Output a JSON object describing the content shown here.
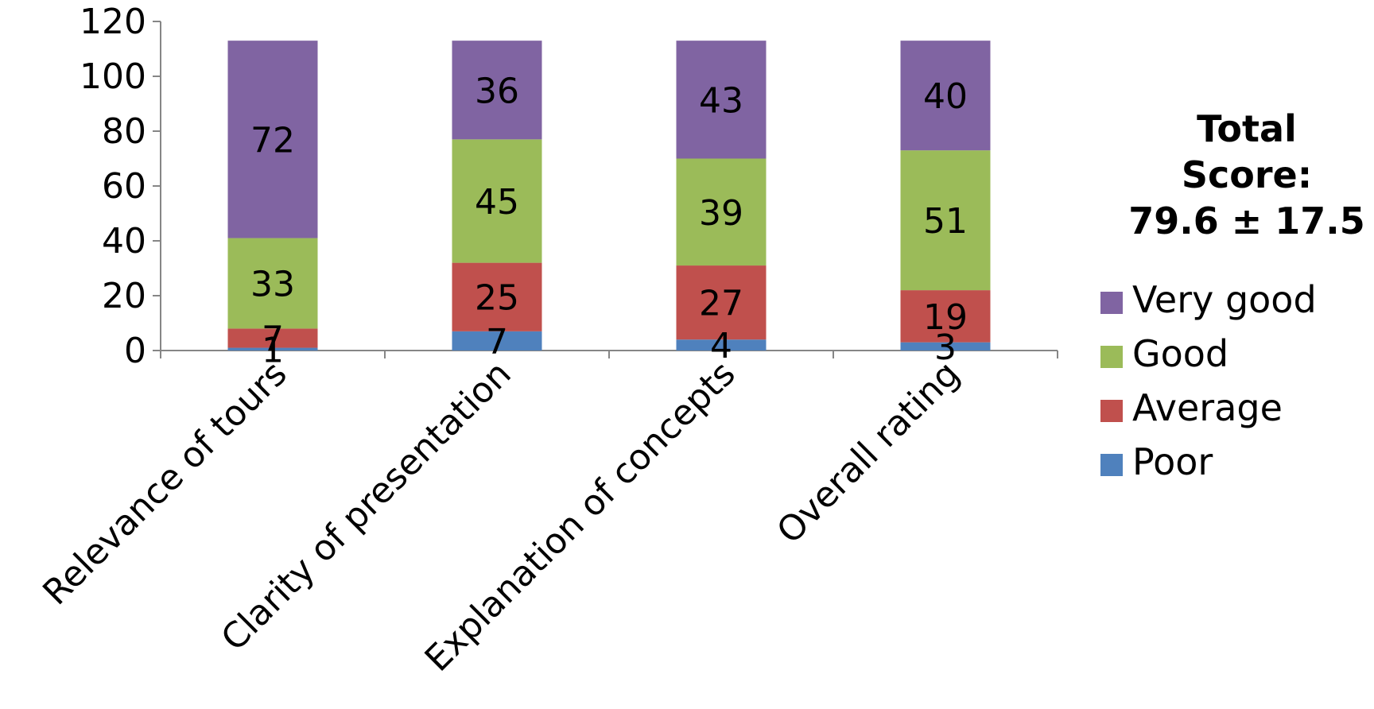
{
  "chart_data": {
    "type": "bar",
    "stacked": true,
    "categories": [
      "Relevance of tours",
      "Clarity of presentation",
      "Explanation of concepts",
      "Overall rating"
    ],
    "series": [
      {
        "name": "Poor",
        "color": "#4f81bd",
        "values": [
          1,
          7,
          4,
          3
        ]
      },
      {
        "name": "Average",
        "color": "#c0504d",
        "values": [
          7,
          25,
          27,
          19
        ]
      },
      {
        "name": "Good",
        "color": "#9bbb59",
        "values": [
          33,
          45,
          39,
          51
        ]
      },
      {
        "name": "Very good",
        "color": "#8064a2",
        "values": [
          72,
          36,
          43,
          40
        ]
      }
    ],
    "ylim": [
      0,
      120
    ],
    "yticks": [
      "0",
      "20",
      "40",
      "60",
      "80",
      "100",
      "120"
    ],
    "grid": false,
    "legend_position": "right",
    "annotation": {
      "lines": [
        "Total",
        "Score:",
        "79.6 ± 17.5"
      ]
    }
  }
}
